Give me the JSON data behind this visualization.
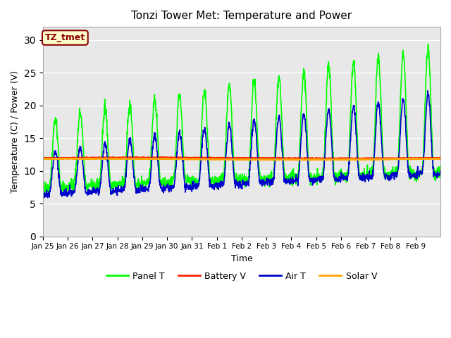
{
  "title": "Tonzi Tower Met: Temperature and Power",
  "xlabel": "Time",
  "ylabel": "Temperature (C) / Power (V)",
  "n_days": 16,
  "ylim": [
    0,
    32
  ],
  "yticks": [
    0,
    5,
    10,
    15,
    20,
    25,
    30
  ],
  "xtick_labels": [
    "Jan 25",
    "Jan 26",
    "Jan 27",
    "Jan 28",
    "Jan 29",
    "Jan 30",
    "Jan 31",
    "Feb 1",
    "Feb 2",
    "Feb 3",
    "Feb 4",
    "Feb 5",
    "Feb 6",
    "Feb 7",
    "Feb 8",
    "Feb 9"
  ],
  "bg_color": "#e8e8e8",
  "legend_label": "TZ_tmet",
  "legend_box_facecolor": "#ffffcc",
  "legend_text_color": "#8b0000",
  "legend_box_edgecolor": "#8b0000",
  "series": {
    "panel_t": {
      "color": "#00ff00",
      "label": "Panel T",
      "lw": 1.2
    },
    "battery_v": {
      "color": "#ff2200",
      "label": "Battery V",
      "lw": 1.8
    },
    "air_t": {
      "color": "#0000cc",
      "label": "Air T",
      "lw": 1.2
    },
    "solar_v": {
      "color": "#ffa500",
      "label": "Solar V",
      "lw": 1.8
    }
  }
}
